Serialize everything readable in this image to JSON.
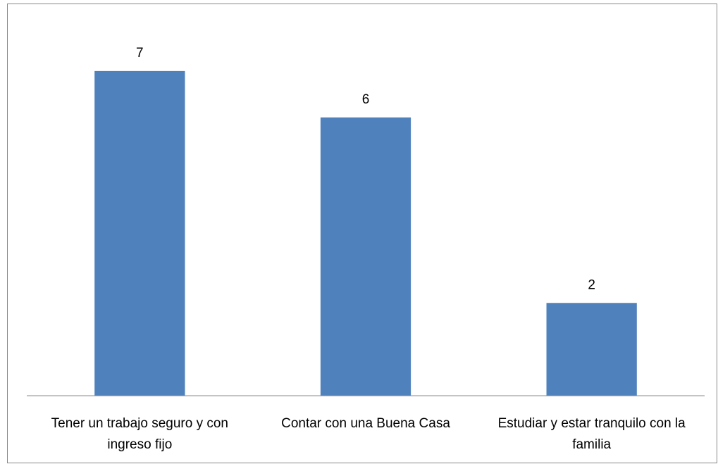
{
  "chart_data": {
    "type": "bar",
    "categories": [
      "Tener un trabajo seguro y con ingreso fijo",
      "Contar con una Buena Casa",
      "Estudiar y estar tranquilo con la familia"
    ],
    "values": [
      7,
      6,
      2
    ],
    "color": "#4f81bd",
    "ylim": [
      0,
      8
    ]
  }
}
